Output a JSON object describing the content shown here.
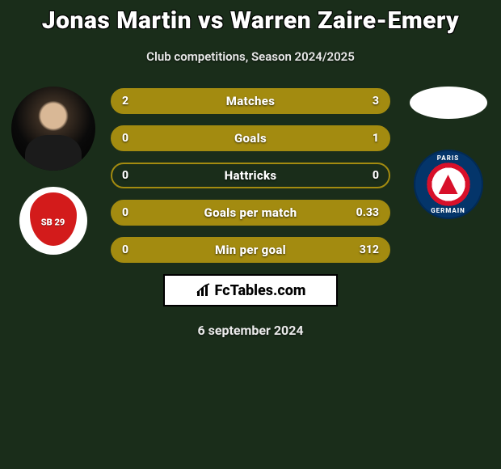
{
  "header": {
    "title": "Jonas Martin vs Warren Zaire-Emery",
    "subtitle": "Club competitions, Season 2024/2025"
  },
  "players": {
    "left": {
      "club_badge_text": "SB\n29"
    },
    "right": {
      "club_arc_top": "PARIS",
      "club_arc_bottom": "GERMAIN"
    }
  },
  "bars": {
    "border_color": "#a38b10",
    "fill_color": "#a38b10",
    "items": [
      {
        "label": "Matches",
        "left": "2",
        "right": "3",
        "left_frac": 0.4,
        "right_frac": 0.6
      },
      {
        "label": "Goals",
        "left": "0",
        "right": "1",
        "left_frac": 0.0,
        "right_frac": 1.0
      },
      {
        "label": "Hattricks",
        "left": "0",
        "right": "0",
        "left_frac": 0.0,
        "right_frac": 0.0
      },
      {
        "label": "Goals per match",
        "left": "0",
        "right": "0.33",
        "left_frac": 0.0,
        "right_frac": 1.0
      },
      {
        "label": "Min per goal",
        "left": "0",
        "right": "312",
        "left_frac": 0.0,
        "right_frac": 1.0
      }
    ]
  },
  "badge": {
    "site": "FcTables.com"
  },
  "date": "6 september 2024",
  "colors": {
    "background": "#1a2d1a",
    "text": "#ffffff",
    "brest_red": "#d31b1b",
    "psg_navy": "#04356a",
    "psg_red": "#d8102a"
  }
}
